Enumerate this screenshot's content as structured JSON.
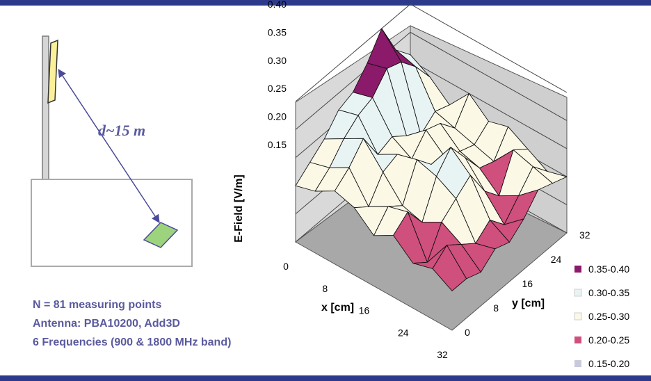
{
  "diagram": {
    "distance_label": "d~15 m"
  },
  "notes": [
    "N = 81 measuring points",
    "Antenna: PBA10200, Add3D",
    "6 Frequencies (900 & 1800 MHz band)"
  ],
  "chart_data": {
    "type": "surface3d",
    "z_label": "E-Field [V/m]",
    "x_label": "x [cm]",
    "y_label": "y [cm]",
    "z_ticks": [
      "0.15",
      "0.20",
      "0.25",
      "0.30",
      "0.35",
      "0.40"
    ],
    "x_ticks": [
      "0",
      "8",
      "16",
      "24",
      "32"
    ],
    "y_ticks": [
      "0",
      "8",
      "16",
      "24",
      "32"
    ],
    "zlim": [
      0.15,
      0.4
    ],
    "grid": true,
    "legend_position": "bottom-right",
    "legend": [
      {
        "label": "0.35-0.40",
        "color": "#8b1a6b"
      },
      {
        "label": "0.30-0.35",
        "color": "#e8f3f3"
      },
      {
        "label": "0.25-0.30",
        "color": "#fbf8e6"
      },
      {
        "label": "0.20-0.25",
        "color": "#cf4f7d"
      },
      {
        "label": "0.15-0.20",
        "color": "#c9c9dc"
      }
    ],
    "x": [
      0,
      4,
      8,
      12,
      16,
      20,
      24,
      28,
      32
    ],
    "y": [
      0,
      4,
      8,
      12,
      16,
      20,
      24,
      28,
      32
    ],
    "z": [
      [
        0.22,
        0.22,
        0.21,
        0.23,
        0.22,
        0.24,
        0.27,
        0.26,
        0.25
      ],
      [
        0.24,
        0.26,
        0.24,
        0.22,
        0.24,
        0.21,
        0.24,
        0.27,
        0.24
      ],
      [
        0.23,
        0.21,
        0.26,
        0.28,
        0.3,
        0.25,
        0.22,
        0.28,
        0.26
      ],
      [
        0.26,
        0.28,
        0.24,
        0.3,
        0.33,
        0.29,
        0.25,
        0.24,
        0.28
      ],
      [
        0.24,
        0.27,
        0.25,
        0.31,
        0.28,
        0.27,
        0.26,
        0.25,
        0.27
      ],
      [
        0.27,
        0.25,
        0.29,
        0.3,
        0.27,
        0.3,
        0.29,
        0.26,
        0.3
      ],
      [
        0.28,
        0.3,
        0.33,
        0.28,
        0.29,
        0.27,
        0.25,
        0.27,
        0.26
      ],
      [
        0.26,
        0.28,
        0.31,
        0.33,
        0.34,
        0.37,
        0.36,
        0.33,
        0.29
      ],
      [
        0.25,
        0.27,
        0.29,
        0.32,
        0.33,
        0.36,
        0.4,
        0.34,
        0.31
      ]
    ]
  }
}
